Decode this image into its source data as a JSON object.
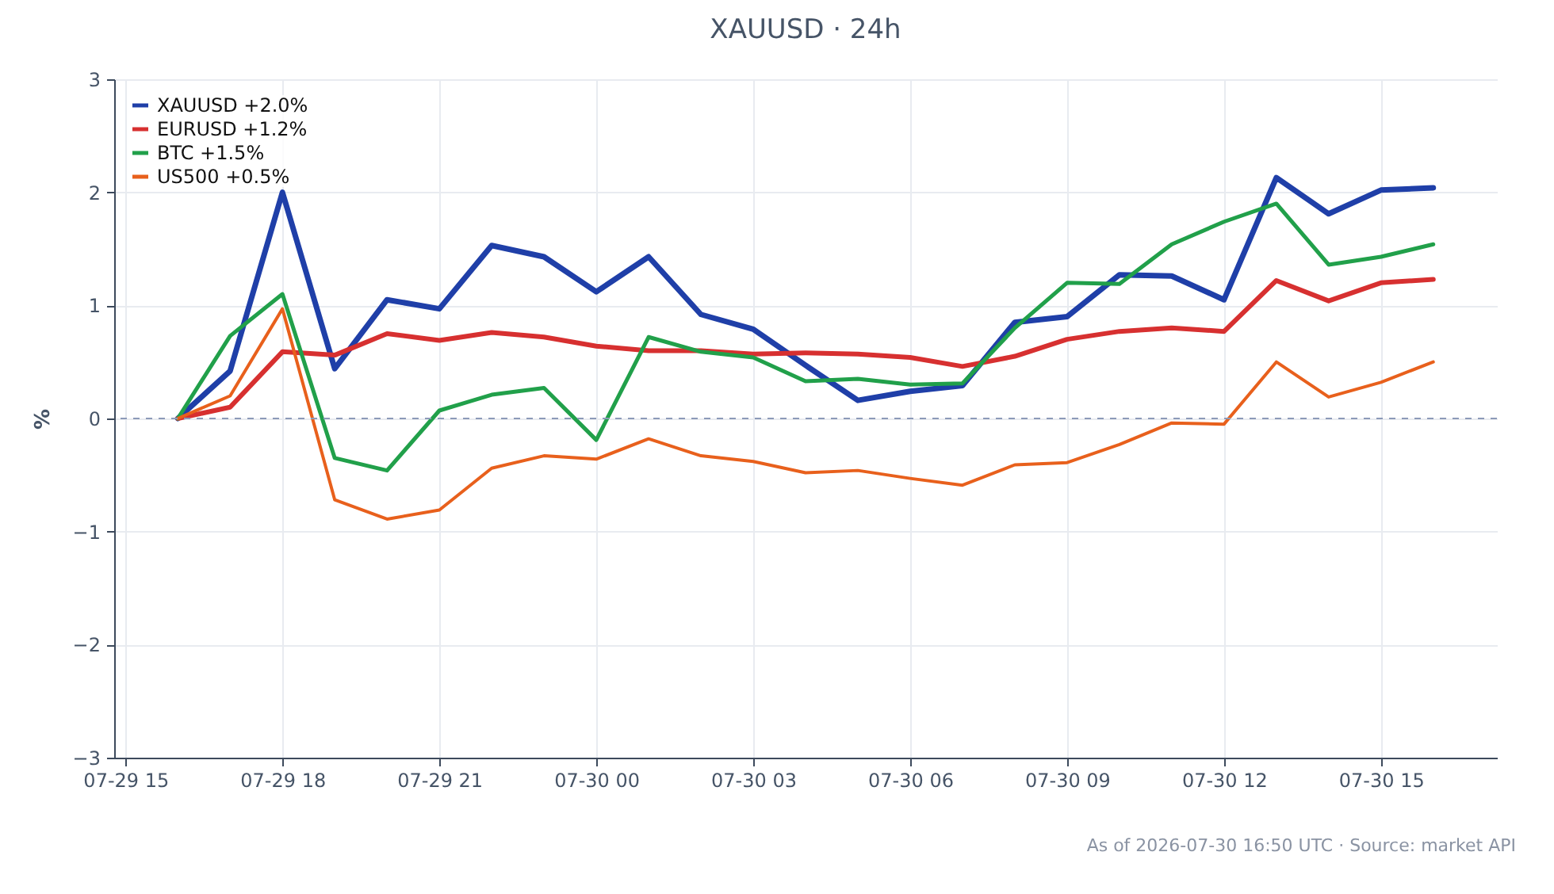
{
  "chart_data": {
    "type": "line",
    "title": "XAUUSD · 24h",
    "ylabel": "%",
    "x": [
      "2026-07-29T16:00",
      "2026-07-29T17:00",
      "2026-07-29T18:00",
      "2026-07-29T19:00",
      "2026-07-29T20:00",
      "2026-07-29T21:00",
      "2026-07-29T22:00",
      "2026-07-29T23:00",
      "2026-07-30T00:00",
      "2026-07-30T01:00",
      "2026-07-30T02:00",
      "2026-07-30T03:00",
      "2026-07-30T04:00",
      "2026-07-30T05:00",
      "2026-07-30T06:00",
      "2026-07-30T07:00",
      "2026-07-30T08:00",
      "2026-07-30T09:00",
      "2026-07-30T10:00",
      "2026-07-30T11:00",
      "2026-07-30T12:00",
      "2026-07-30T13:00",
      "2026-07-30T14:00",
      "2026-07-30T15:00",
      "2026-07-30T16:00"
    ],
    "series": [
      {
        "name": "XAUUSD +2.0%",
        "color": "#1f3fa8",
        "values": [
          0,
          0.42,
          2.0,
          0.44,
          1.05,
          0.97,
          1.53,
          1.43,
          1.12,
          1.43,
          0.92,
          0.79,
          0.47,
          0.16,
          0.24,
          0.29,
          0.85,
          0.9,
          1.27,
          1.26,
          1.05,
          2.13,
          1.81,
          2.02,
          2.04
        ]
      },
      {
        "name": "EURUSD +1.2%",
        "color": "#d73030",
        "values": [
          0,
          0.1,
          0.59,
          0.56,
          0.75,
          0.69,
          0.76,
          0.72,
          0.64,
          0.6,
          0.6,
          0.57,
          0.58,
          0.57,
          0.54,
          0.46,
          0.55,
          0.7,
          0.77,
          0.8,
          0.77,
          1.22,
          1.04,
          1.2,
          1.23
        ]
      },
      {
        "name": "BTC +1.5%",
        "color": "#21a04a",
        "values": [
          0,
          0.73,
          1.1,
          -0.35,
          -0.46,
          0.07,
          0.21,
          0.27,
          -0.19,
          0.72,
          0.59,
          0.54,
          0.33,
          0.35,
          0.3,
          0.31,
          0.8,
          1.2,
          1.19,
          1.54,
          1.74,
          1.9,
          1.36,
          1.43,
          1.54
        ]
      },
      {
        "name": "US500 +0.5%",
        "color": "#e8601c",
        "values": [
          0,
          0.2,
          0.97,
          -0.72,
          -0.89,
          -0.81,
          -0.44,
          -0.33,
          -0.36,
          -0.18,
          -0.33,
          -0.38,
          -0.48,
          -0.46,
          -0.53,
          -0.59,
          -0.41,
          -0.39,
          -0.23,
          -0.04,
          -0.05,
          0.5,
          0.19,
          0.32,
          0.5
        ]
      }
    ],
    "xlim": [
      "2026-07-29T14:47",
      "2026-07-30T17:13"
    ],
    "xticks": [
      {
        "value": "2026-07-29T15:00",
        "label": "07-29 15"
      },
      {
        "value": "2026-07-29T18:00",
        "label": "07-29 18"
      },
      {
        "value": "2026-07-29T21:00",
        "label": "07-29 21"
      },
      {
        "value": "2026-07-30T00:00",
        "label": "07-30 00"
      },
      {
        "value": "2026-07-30T03:00",
        "label": "07-30 03"
      },
      {
        "value": "2026-07-30T06:00",
        "label": "07-30 06"
      },
      {
        "value": "2026-07-30T09:00",
        "label": "07-30 09"
      },
      {
        "value": "2026-07-30T12:00",
        "label": "07-30 12"
      },
      {
        "value": "2026-07-30T15:00",
        "label": "07-30 15"
      }
    ],
    "ylim": [
      -3,
      3
    ],
    "yticks": [
      {
        "value": -3,
        "label": "−3"
      },
      {
        "value": -2,
        "label": "−2"
      },
      {
        "value": -1,
        "label": "−1"
      },
      0,
      1,
      2,
      3
    ],
    "ref_lines": [
      {
        "axis": "y",
        "value": 0,
        "color": "#8c9ab8",
        "line_style": "dashed"
      }
    ],
    "grid": true,
    "legend": "top left",
    "line_style": "solid",
    "marker": "none",
    "annotations": [
      "As of 2026-07-30 16:50 UTC · Source: market API"
    ]
  }
}
